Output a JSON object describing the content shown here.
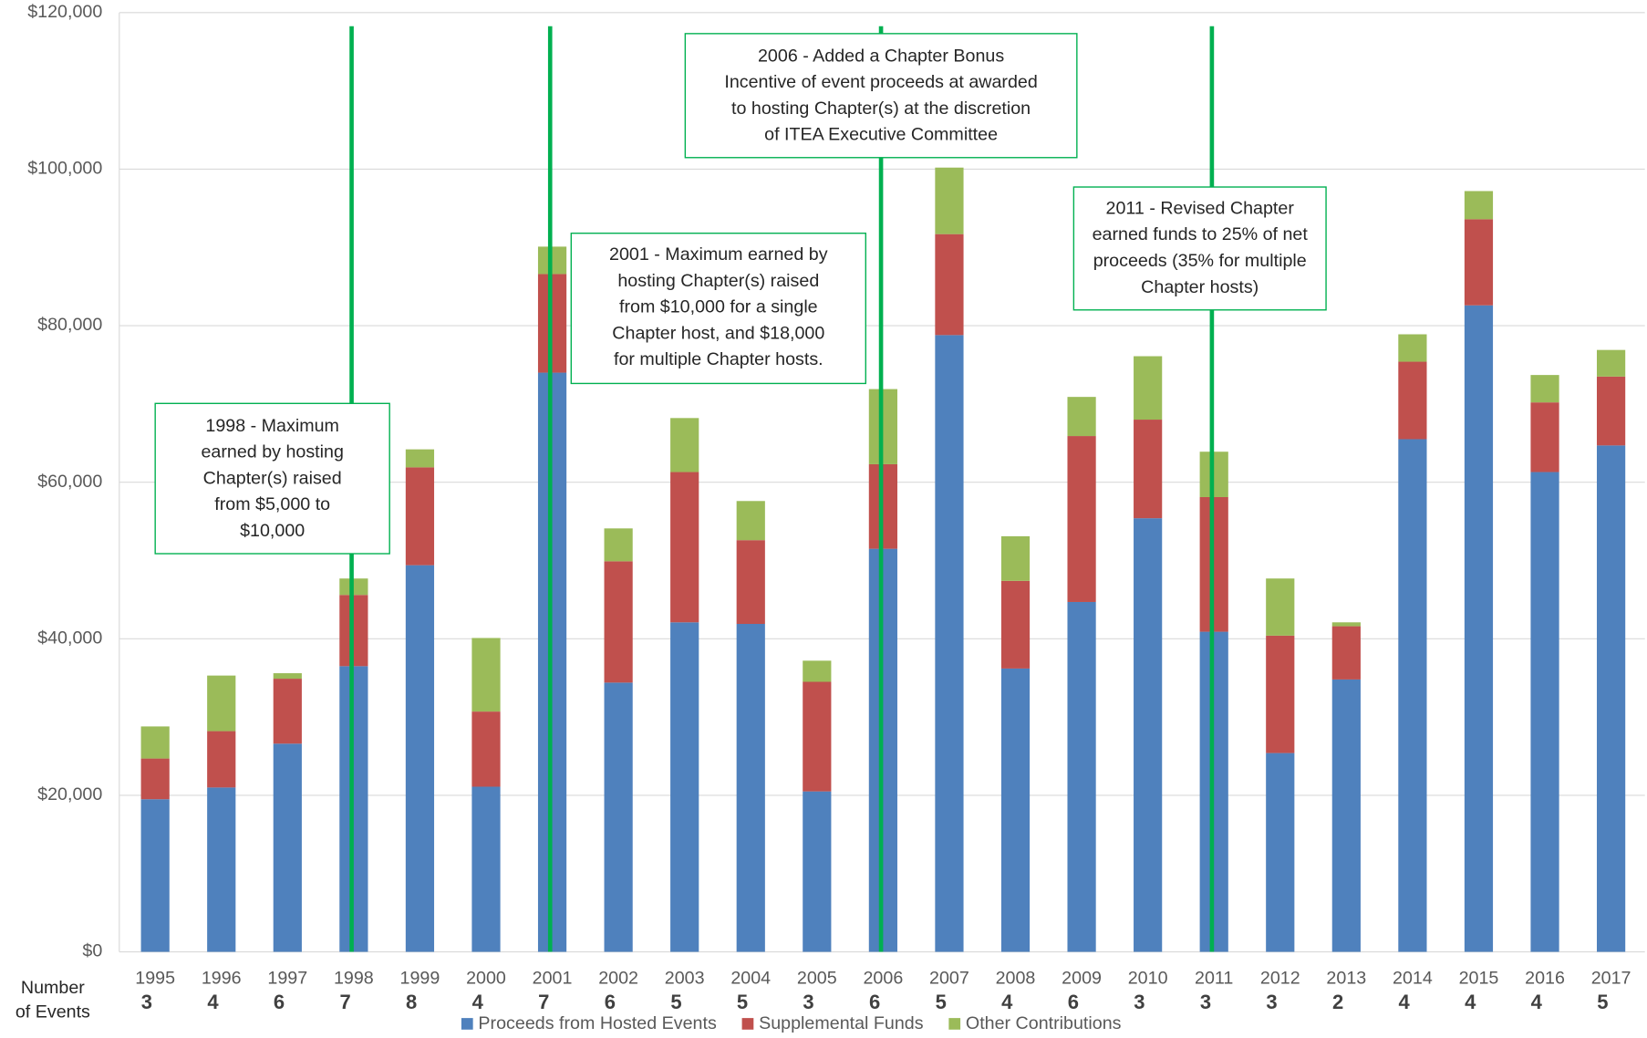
{
  "chart_data": {
    "type": "stacked_bar",
    "categories": [
      "1995",
      "1996",
      "1997",
      "1998",
      "1999",
      "2000",
      "2001",
      "2002",
      "2003",
      "2004",
      "2005",
      "2006",
      "2007",
      "2008",
      "2009",
      "2010",
      "2011",
      "2012",
      "2013",
      "2014",
      "2015",
      "2016",
      "2017"
    ],
    "series": [
      {
        "name": "Proceeds from Hosted Events",
        "color": "#4f81bd",
        "values": [
          19500,
          21000,
          26600,
          36500,
          49400,
          21100,
          74000,
          34400,
          42100,
          41900,
          20500,
          51500,
          78800,
          36200,
          44700,
          55400,
          40900,
          25400,
          34800,
          65500,
          82600,
          61300,
          64700
        ]
      },
      {
        "name": "Supplemental Funds",
        "color": "#c0504d",
        "values": [
          5200,
          7200,
          8300,
          9100,
          12500,
          9600,
          12600,
          15500,
          19200,
          10700,
          14000,
          10800,
          12900,
          11200,
          21200,
          12600,
          17200,
          15000,
          6800,
          9900,
          11000,
          8900,
          8800
        ]
      },
      {
        "name": "Other Contributions",
        "color": "#9bbb59",
        "values": [
          4100,
          7100,
          700,
          2100,
          2300,
          9400,
          3500,
          4200,
          6900,
          5000,
          2700,
          9600,
          8500,
          5700,
          5000,
          8100,
          5800,
          7300,
          500,
          3500,
          3600,
          3500,
          3400
        ]
      }
    ],
    "ylim": [
      0,
      120000
    ],
    "yticks": [
      {
        "value": 0,
        "label": "$0"
      },
      {
        "value": 20000,
        "label": "$20,000"
      },
      {
        "value": 40000,
        "label": "$40,000"
      },
      {
        "value": 60000,
        "label": "$60,000"
      },
      {
        "value": 80000,
        "label": "$80,000"
      },
      {
        "value": 100000,
        "label": "$100,000"
      },
      {
        "value": 120000,
        "label": "$120,000"
      }
    ],
    "grid": true,
    "event_counts": {
      "label": [
        "Number",
        "of Events"
      ],
      "values": [
        3,
        4,
        6,
        7,
        8,
        4,
        7,
        6,
        5,
        5,
        3,
        6,
        5,
        4,
        6,
        3,
        3,
        3,
        2,
        4,
        4,
        4,
        5
      ]
    },
    "annotation_color": "#00b050",
    "annotations": [
      {
        "category": "1998",
        "lines": [
          "1998 - Maximum",
          "earned by hosting",
          "Chapter(s) raised",
          "from $5,000 to",
          "$10,000"
        ]
      },
      {
        "category": "2001",
        "lines": [
          "2001 - Maximum earned by",
          "hosting Chapter(s) raised",
          "from $10,000 for a single",
          "Chapter host, and $18,000",
          "for multiple Chapter hosts."
        ]
      },
      {
        "category": "2006",
        "lines": [
          "2006 - Added a Chapter Bonus",
          "Incentive of event proceeds at awarded",
          "to hosting Chapter(s) at the discretion",
          "of ITEA Executive Committee"
        ]
      },
      {
        "category": "2011",
        "lines": [
          "2011 - Revised Chapter",
          "earned funds to 25% of net",
          "proceeds (35% for multiple",
          "Chapter hosts)"
        ]
      }
    ]
  }
}
